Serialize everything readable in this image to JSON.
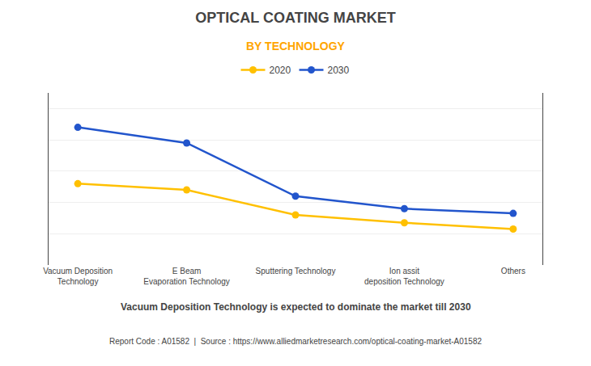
{
  "chart_data": {
    "type": "line",
    "title": "OPTICAL COATING MARKET",
    "subtitle": "BY TECHNOLOGY",
    "categories": [
      "Vacuum Deposition\nTechnology",
      "E Beam\nEvaporation Technology",
      "Sputtering Technology",
      "Ion assit\ndeposition Technology",
      "Others"
    ],
    "series": [
      {
        "name": "2020",
        "color": "#FFC000",
        "values": [
          5.2,
          4.8,
          3.2,
          2.7,
          2.3
        ]
      },
      {
        "name": "2030",
        "color": "#2255CC",
        "values": [
          8.8,
          7.8,
          4.4,
          3.6,
          3.3
        ]
      }
    ],
    "ylim": [
      0,
      11
    ],
    "yticks": [
      2,
      4,
      6,
      8,
      10
    ],
    "tick_labels": "x",
    "grid": true,
    "legend": "top",
    "marker": "circle",
    "annotations": [
      "Vacuum Deposition Technology is expected to dominate the market till 2030",
      "Report Code : A01582  |  Source : https://www.alliedmarketresearch.com/optical-coating-market-A01582"
    ]
  }
}
